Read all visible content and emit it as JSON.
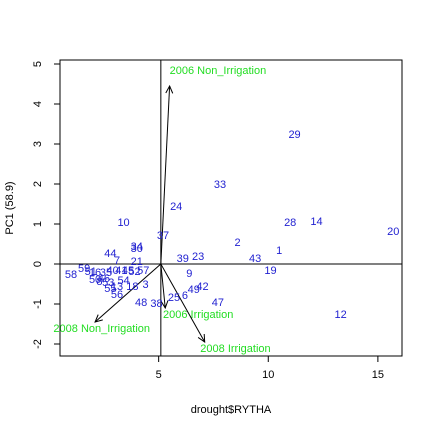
{
  "chart_data": {
    "type": "scatter",
    "title": "",
    "xlabel": "drought$RYTHA",
    "ylabel": "PC1 (58.9)",
    "xlim": [
      0.5,
      16.1
    ],
    "ylim": [
      -2.3,
      5.1
    ],
    "xticks": [
      5,
      10,
      15
    ],
    "yticks": [
      -2,
      -1,
      0,
      1,
      2,
      3,
      4,
      5
    ],
    "grid": false,
    "reference_lines": {
      "x": 5.1,
      "y": 0
    },
    "point_color": "#1f1fd0",
    "vector_color": "#000000",
    "vector_label_color": "#22dd22",
    "points": [
      {
        "label": "1",
        "x": 10.5,
        "y": 0.35
      },
      {
        "label": "2",
        "x": 8.6,
        "y": 0.55
      },
      {
        "label": "3",
        "x": 4.4,
        "y": -0.5
      },
      {
        "label": "7",
        "x": 3.1,
        "y": 0.1
      },
      {
        "label": "9",
        "x": 6.4,
        "y": -0.22
      },
      {
        "label": "10",
        "x": 3.4,
        "y": 1.05
      },
      {
        "label": "12",
        "x": 13.3,
        "y": -1.25
      },
      {
        "label": "14",
        "x": 12.2,
        "y": 1.07
      },
      {
        "label": "19",
        "x": 10.1,
        "y": -0.15
      },
      {
        "label": "20",
        "x": 15.7,
        "y": 0.82
      },
      {
        "label": "21",
        "x": 4.0,
        "y": 0.08
      },
      {
        "label": "23",
        "x": 6.8,
        "y": 0.2
      },
      {
        "label": "24",
        "x": 5.8,
        "y": 1.45
      },
      {
        "label": "25",
        "x": 5.7,
        "y": -0.82
      },
      {
        "label": "28",
        "x": 11.0,
        "y": 1.05
      },
      {
        "label": "29",
        "x": 11.2,
        "y": 3.25
      },
      {
        "label": "30",
        "x": 4.0,
        "y": 0.4
      },
      {
        "label": "33",
        "x": 7.8,
        "y": 2.0
      },
      {
        "label": "34",
        "x": 4.0,
        "y": 0.45
      },
      {
        "label": "37",
        "x": 5.2,
        "y": 0.72
      },
      {
        "label": "38",
        "x": 4.9,
        "y": -0.98
      },
      {
        "label": "39",
        "x": 6.1,
        "y": 0.15
      },
      {
        "label": "42",
        "x": 7.0,
        "y": -0.55
      },
      {
        "label": "43",
        "x": 9.4,
        "y": 0.15
      },
      {
        "label": "44",
        "x": 2.8,
        "y": 0.28
      },
      {
        "label": "47",
        "x": 7.7,
        "y": -0.95
      },
      {
        "label": "48",
        "x": 4.2,
        "y": -0.95
      },
      {
        "label": "49",
        "x": 6.6,
        "y": -0.62
      },
      {
        "label": "52",
        "x": 3.9,
        "y": -0.18
      },
      {
        "label": "56",
        "x": 3.1,
        "y": -0.75
      },
      {
        "label": "58",
        "x": 1.0,
        "y": -0.25
      },
      {
        "label": "59",
        "x": 1.6,
        "y": -0.1
      },
      {
        "label": "6",
        "x": 6.2,
        "y": -0.78
      },
      {
        "label": "13",
        "x": 3.1,
        "y": -0.55
      },
      {
        "label": "18",
        "x": 3.8,
        "y": -0.55
      },
      {
        "label": "8",
        "x": 2.3,
        "y": -0.42
      },
      {
        "label": "16",
        "x": 2.1,
        "y": -0.2
      },
      {
        "label": "35",
        "x": 2.6,
        "y": -0.2
      },
      {
        "label": "40",
        "x": 2.9,
        "y": -0.15
      },
      {
        "label": "41",
        "x": 3.3,
        "y": -0.15
      },
      {
        "label": "45",
        "x": 3.6,
        "y": -0.15
      },
      {
        "label": "46",
        "x": 2.5,
        "y": -0.35
      },
      {
        "label": "50",
        "x": 2.1,
        "y": -0.38
      },
      {
        "label": "51",
        "x": 1.9,
        "y": -0.18
      },
      {
        "label": "53",
        "x": 2.7,
        "y": -0.45
      },
      {
        "label": "54",
        "x": 3.4,
        "y": -0.4
      },
      {
        "label": "55",
        "x": 2.8,
        "y": -0.6
      },
      {
        "label": "57",
        "x": 4.3,
        "y": -0.15
      }
    ],
    "vectors": [
      {
        "label": "2006 Non_Irrigation",
        "x": 5.5,
        "y": 4.45,
        "label_x": 5.5,
        "label_y": 4.85
      },
      {
        "label": "2006 Irrigation",
        "x": 5.3,
        "y": -1.1,
        "label_x": 5.2,
        "label_y": -1.25
      },
      {
        "label": "2008 Irrigation",
        "x": 7.1,
        "y": -1.95,
        "label_x": 6.9,
        "label_y": -2.1
      },
      {
        "label": "2008 Non_Irrigation",
        "x": 2.1,
        "y": -1.45,
        "label_x": 0.2,
        "label_y": -1.6
      }
    ]
  }
}
